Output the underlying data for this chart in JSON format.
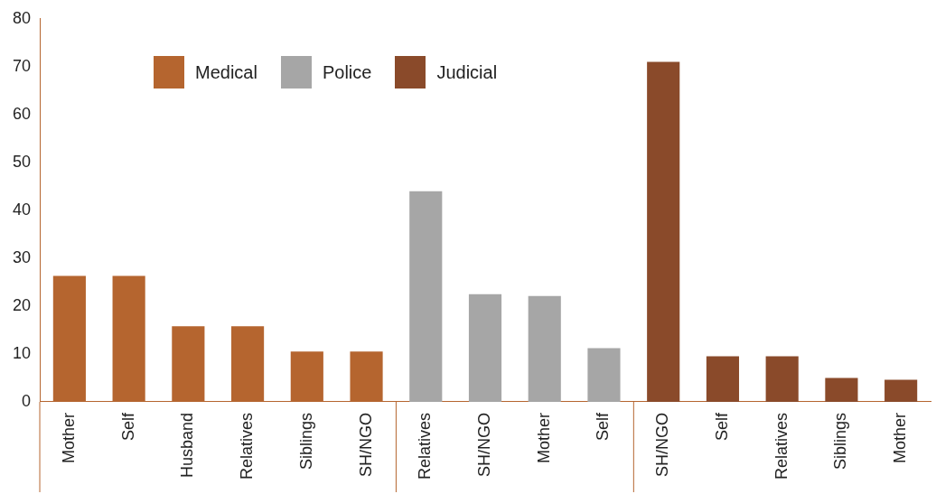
{
  "chart_data": {
    "type": "bar",
    "categories": [
      "Mother",
      "Self",
      "Husband",
      "Relatives",
      "Siblings",
      "SH/NGO",
      "Relatives",
      "SH/NGO",
      "Mother",
      "Self",
      "SH/NGO",
      "Self",
      "Relatives",
      "Siblings",
      "Mother"
    ],
    "series": [
      {
        "name": "Medical",
        "color": "#b5652f",
        "values": [
          26.3,
          26.3,
          15.8,
          15.8,
          10.5,
          10.5,
          null,
          null,
          null,
          null,
          null,
          null,
          null,
          null,
          null
        ]
      },
      {
        "name": "Police",
        "color": "#a6a6a6",
        "values": [
          null,
          null,
          null,
          null,
          null,
          null,
          44,
          22.5,
          22.1,
          11.2,
          null,
          null,
          null,
          null,
          null
        ]
      },
      {
        "name": "Judicial",
        "color": "#8a4a2a",
        "values": [
          null,
          null,
          null,
          null,
          null,
          null,
          null,
          null,
          null,
          null,
          71,
          9.5,
          9.5,
          5,
          4.6
        ]
      }
    ],
    "ylim": [
      0,
      80
    ],
    "yticks": [
      0,
      10,
      20,
      30,
      40,
      50,
      60,
      70,
      80
    ],
    "grid": false,
    "legend": "top left"
  }
}
